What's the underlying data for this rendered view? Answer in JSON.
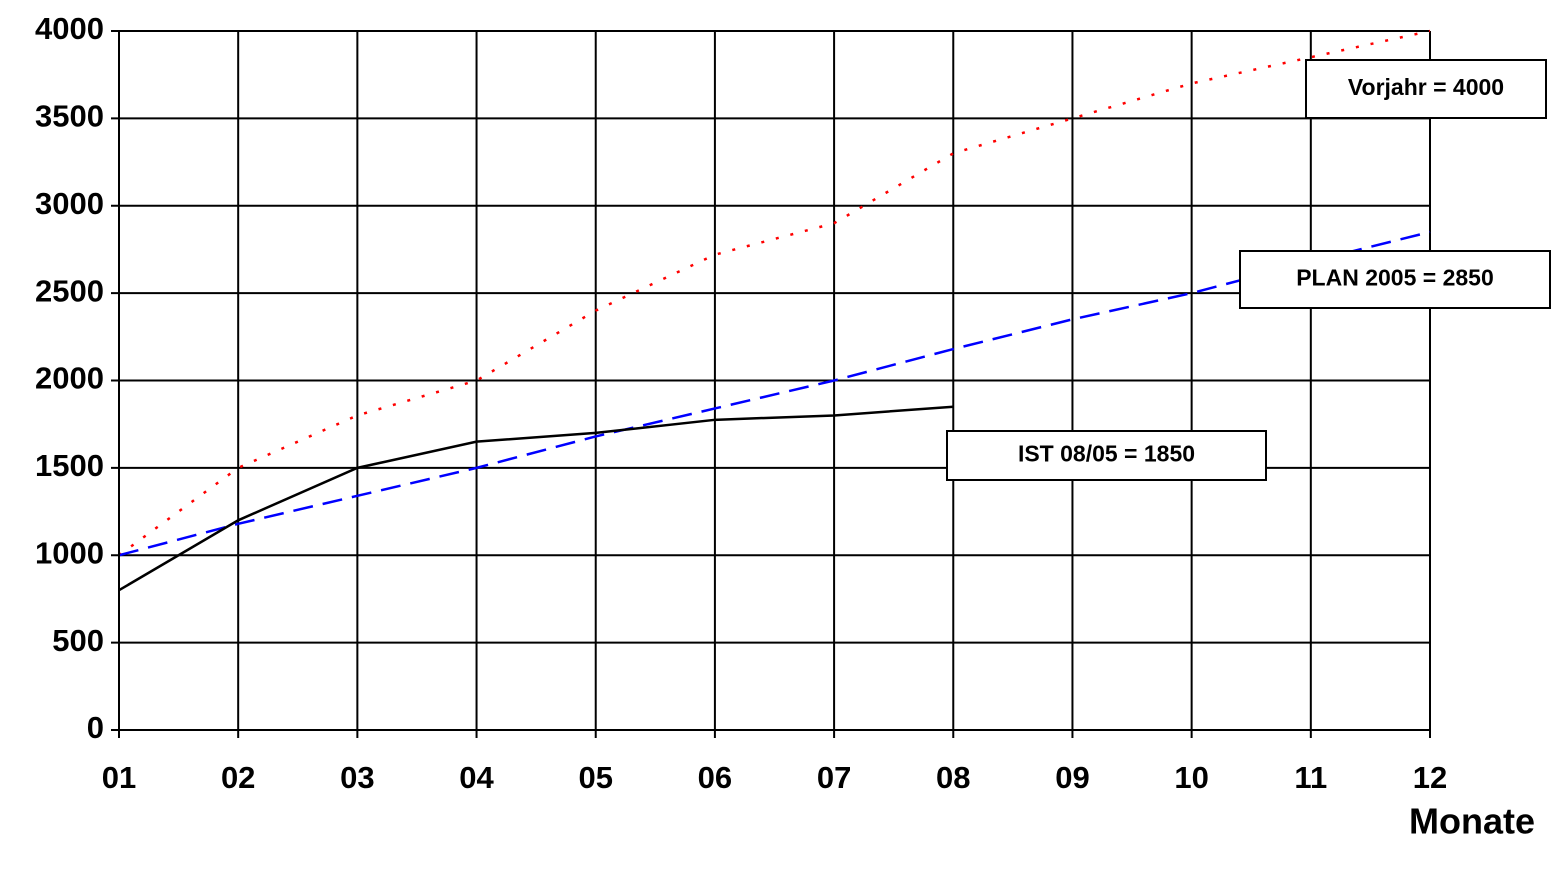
{
  "chart_data": {
    "type": "line",
    "x_label": "Monate",
    "categories": [
      "01",
      "02",
      "03",
      "04",
      "05",
      "06",
      "07",
      "08",
      "09",
      "10",
      "11",
      "12"
    ],
    "series": [
      {
        "name": "Vorjahr = 4000",
        "color": "#ff0000",
        "style": "dotted",
        "values": [
          1000,
          1500,
          1800,
          2000,
          2400,
          2720,
          2900,
          3300,
          3500,
          3700,
          3850,
          4000
        ]
      },
      {
        "name": "PLAN 2005 = 2850",
        "color": "#0000ff",
        "style": "dashed",
        "values": [
          1000,
          1180,
          1340,
          1500,
          1680,
          1840,
          2000,
          2180,
          2350,
          2500,
          2680,
          2850
        ]
      },
      {
        "name": "IST 08/05 = 1850",
        "color": "#000000",
        "style": "solid",
        "values": [
          800,
          1200,
          1500,
          1650,
          1700,
          1775,
          1800,
          1850,
          null,
          null,
          null,
          null
        ]
      }
    ],
    "ylim": [
      0,
      4000
    ],
    "yticks": [
      0,
      500,
      1000,
      1500,
      2000,
      2500,
      3000,
      3500,
      4000
    ],
    "grid": true
  }
}
